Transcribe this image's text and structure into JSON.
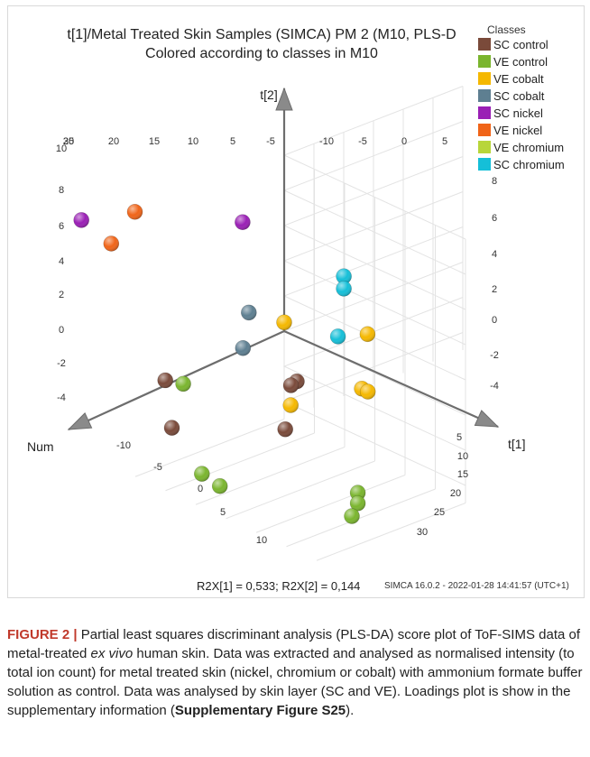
{
  "chart_data": {
    "type": "scatter",
    "subtype": "3d-score-plot",
    "title": "t[1]/Metal Treated Skin Samples (SIMCA) PM 2 (M10, PLS-D",
    "subtitle": "Colored according to classes in M10",
    "axes": {
      "t1": {
        "label": "t[1]",
        "ticks": [
          "5",
          "10",
          "15",
          "20",
          "25",
          "30"
        ]
      },
      "t2": {
        "label": "t[2]",
        "ticks_left": [
          "10",
          "8",
          "6",
          "4",
          "2",
          "0",
          "-2",
          "-4"
        ],
        "ticks_right": [
          "8",
          "6",
          "4",
          "2",
          "0",
          "-2",
          "-4"
        ]
      },
      "num": {
        "label": "Num",
        "ticks": [
          "-10",
          "-5",
          "0",
          "5",
          "10"
        ]
      },
      "top_ticks": [
        "30",
        "25",
        "20",
        "15",
        "10",
        "5",
        "-5",
        "-10",
        "-5",
        "0",
        "5"
      ]
    },
    "legend": {
      "title": "Classes",
      "placement": "top-right",
      "entries": [
        {
          "name": "SC control",
          "color": "#7a4a3a"
        },
        {
          "name": "VE control",
          "color": "#7ab52e"
        },
        {
          "name": "VE cobalt",
          "color": "#f5b800"
        },
        {
          "name": "SC cobalt",
          "color": "#5e7f91"
        },
        {
          "name": "SC nickel",
          "color": "#9a1fb5"
        },
        {
          "name": "VE nickel",
          "color": "#f06418"
        },
        {
          "name": "VE chromium",
          "color": "#b8d63a"
        },
        {
          "name": "SC chromium",
          "color": "#15bfd8"
        }
      ]
    },
    "points": [
      {
        "class": "SC nickel",
        "t1": -4,
        "t2": 9.6,
        "num": 30
      },
      {
        "class": "SC nickel",
        "t1": 1,
        "t2": 7.4,
        "num": 8
      },
      {
        "class": "VE nickel",
        "t1": -5,
        "t2": 8.6,
        "num": 20
      },
      {
        "class": "VE nickel",
        "t1": -3,
        "t2": 7.9,
        "num": 26
      },
      {
        "class": "SC cobalt",
        "t1": 4,
        "t2": 3.0,
        "num": 10
      },
      {
        "class": "SC cobalt",
        "t1": 5,
        "t2": 1.4,
        "num": 12
      },
      {
        "class": "VE cobalt",
        "t1": 0,
        "t2": 0.5,
        "num": 0
      },
      {
        "class": "VE cobalt",
        "t1": 6,
        "t2": -2.6,
        "num": 5
      },
      {
        "class": "VE cobalt",
        "t1": 0,
        "t2": -2.0,
        "num": -14
      },
      {
        "class": "VE cobalt",
        "t1": 3,
        "t2": -4.1,
        "num": -10
      },
      {
        "class": "VE cobalt",
        "t1": 3,
        "t2": -4.4,
        "num": -11
      },
      {
        "class": "SC chromium",
        "t1": 1,
        "t2": 2.1,
        "num": -9
      },
      {
        "class": "SC chromium",
        "t1": 1,
        "t2": 1.4,
        "num": -9
      },
      {
        "class": "SC chromium",
        "t1": 2,
        "t2": -0.9,
        "num": -7
      },
      {
        "class": "SC control",
        "t1": 8,
        "t2": -0.8,
        "num": 6
      },
      {
        "class": "SC control",
        "t1": 9,
        "t2": -0.6,
        "num": 8
      },
      {
        "class": "SC control",
        "t1": 12,
        "t2": -2.1,
        "num": 12
      },
      {
        "class": "SC control",
        "t1": 2,
        "t2": 0.4,
        "num": 22
      },
      {
        "class": "SC control",
        "t1": 9,
        "t2": -0.4,
        "num": 28
      },
      {
        "class": "VE control",
        "t1": 3,
        "t2": 0.1,
        "num": 20
      },
      {
        "class": "VE control",
        "t1": 12,
        "t2": -2.8,
        "num": 26
      },
      {
        "class": "VE control",
        "t1": 13,
        "t2": -3.6,
        "num": 24
      },
      {
        "class": "VE control",
        "t1": 24,
        "t2": -3.8,
        "num": 12
      },
      {
        "class": "VE control",
        "t1": 24,
        "t2": -4.4,
        "num": 12
      },
      {
        "class": "VE control",
        "t1": 24,
        "t2": -5.0,
        "num": 13
      }
    ]
  },
  "figure": {
    "stats": "R2X[1] = 0,533; R2X[2] = 0,144",
    "software": "SIMCA 16.0.2 - 2022-01-28 14:41:57 (UTC+1)"
  },
  "caption": {
    "label": "FIGURE 2",
    "separator": "|",
    "text_1": " Partial least squares discriminant analysis (PLS-DA) score plot of ToF-SIMS data of metal-treated ",
    "italic": "ex vivo",
    "text_2": " human skin. Data was extracted and analysed as normalised intensity (to total ion count) for metal treated skin (nickel, chromium or cobalt) with ammonium formate buffer solution as control. Data was analysed by skin layer (SC and VE). Loadings plot is show in the supplementary information (",
    "bold_ref": "Supplementary Figure S25",
    "text_3": ")."
  }
}
